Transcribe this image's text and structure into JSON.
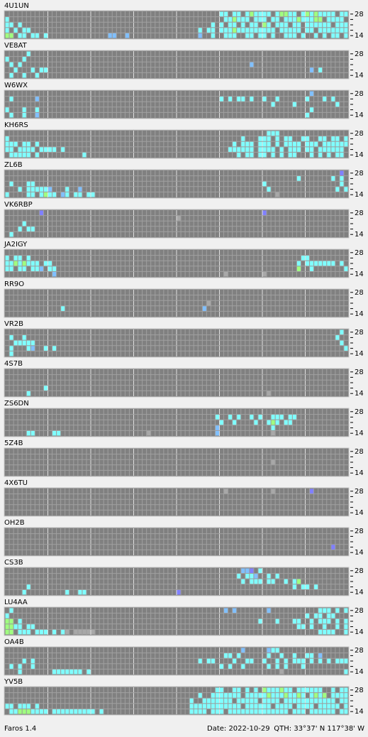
{
  "band_top": "28",
  "band_bottom": "14",
  "beacons": [
    {
      "name": "4U1UN",
      "rows": [
        "..........|..........|..........|..........|..........|cc.cc.cgcc|cc.cggcc.c|gcgcccc.cc",
        "c.........|..........|..........|..........|..........|.ccgccc.cc|c.cc.cccgc|ccgg.cccc.",
        "cc.c......|..........|..........|..........|........c.|c.cc.c.cc.|gc.ccc.cc.|cccccc.ccc",
        "c.c.cc....|..........|..........|..........|.....c.cc.|cccgcccccc|ccc.ccccc.|cc.ccccccc",
        "gg.cc.cc.c|..........|....ll..l.|..........|.....l..c.|.ccc..cc.c|c.c..ccc.c|..c.c.cc.c"
      ]
    },
    {
      "name": "VE8AT",
      "rows": [
        ".....c....|..........|..........|..........|..........|..........|..........|..........",
        "c...c.....|..........|..........|..........|..........|..........|..........|..........",
        ".c.c......|..........|..........|..........|..........|.......l..|..........|..........",
        "..c...c.cc|..........|..........|..........|..........|..........|..........|.l.c......",
        ".c..c..c..|..........|..........|..........|..........|..........|..........|.........."
      ]
    },
    {
      "name": "W6WX",
      "rows": [
        "..........|..........|..........|..........|..........|..........|..........|.l........",
        ".c.....l..|..........|..........|..........|..........|c.c.cc.c..|c..c......|c...c.c...",
        "..........|..........|..........|..........|..........|..........|..c....c..|.......c..",
        "c...c..c..|..........|..........|..........|..........|..........|..........|.c........",
        ".c..c..l..|..........|..........|..........|..........|..........|..........|c........."
      ]
    },
    {
      "name": "KH6RS",
      "rows": [
        "..........|..........|..........|..........|..........|..........|.ccc......|..........",
        "c.........|..........|..........|..........|..........|.....c...c|cc.c.cc..c|c..cc.cc.c",
        "ccc.cc.c..|..........|..........|..........|..........|...c.ccc.c|cc.c.cccc.|ccc.cccccc",
        "cc.cccc.cc|cc.c......|..........|..........|..........|..cccccc.c|ccc.c.ccc.|cc.cccccc.",
        ".ccccc.c..|........c.|..........|..........|..........|....c.cc.c|c.c.c.cc..|.c.c.c.cc."
      ]
    },
    {
      "name": "ZL6B",
      "rows": [
        "..........|..........|..........|..........|..........|..........|..........|........b.",
        "..........|..........|..........|..........|..........|..........|........c.|......c.c.",
        ".c...cc...|..........|..........|..........|..........|..........|c.........|........c.",
        "...c.ccccc|l...c..l..|..........|..........|..........|..........|.c........|.......c.c",
        "c....cc.cg|cc.lc.cc.c|c.........|..........|..........|..........|...d......|.........."
      ]
    },
    {
      "name": "VK6RBP",
      "rows": [
        "........b.|..........|..........|..........|..........|..........|b.........|..........",
        "..........|..........|..........|..........|d.........|..........|..........|..........",
        "....c.....|..........|..........|..........|..........|..........|..........|..........",
        "...c.cc...|..........|..........|..........|..........|..........|..........|..........",
        ".c........|..........|..........|..........|..........|..........|..........|.........."
      ]
    },
    {
      "name": "JA2IGY",
      "rows": [
        "..........|..........|..........|..........|..........|..........|..........|..........",
        "c.cc.c....|..........|..........|..........|..........|..........|.........c|c.........",
        "ccgcgccc.c|c.........|..........|..........|..........|..........|........c.|ccccccc.c.",
        "cc.cc.ccl.|cc........|..........|..........|..........|..........|........g.|.c.......c",
        "..........|.l........|..........|..........|..........|.d........|d.........|.........."
      ]
    },
    {
      "name": "RR9O",
      "rows": [
        "..........|..........|..........|..........|..........|..........|..........|..........",
        "..........|..........|..........|..........|..........|..........|..........|..........",
        "..........|..........|..........|..........|.......d..|..........|..........|..........",
        "..........|...c......|..........|..........|......l...|..........|..........|..........",
        "..........|..........|..........|..........|..........|..........|..........|.........."
      ]
    },
    {
      "name": "VR2B",
      "rows": [
        "..........|..........|..........|..........|..........|..........|..........|........c.",
        ".c..c.....|..........|..........|..........|..........|..........|..........|.......c..",
        "..ccccc...|..........|..........|..........|..........|..........|..........|........c.",
        ".c...cl..c|.c........|..........|..........|..........|..........|..........|.........c",
        ".c........|..........|..........|..........|..........|..........|..........|.........."
      ]
    },
    {
      "name": "4S7B",
      "rows": [
        "..........|..........|..........|..........|..........|..........|..........|..........",
        "..........|..........|..........|..........|..........|..........|..........|..........",
        "..........|..........|..........|..........|..........|..........|..........|..........",
        ".........c|..........|..........|..........|..........|..........|..........|..........",
        ".....c....|..........|..........|..........|..........|..........|.d........|.........."
      ]
    },
    {
      "name": "ZS6DN",
      "rows": [
        "..........|..........|..........|..........|..........|..........|..........|..........",
        "..........|..........|..........|..........|.........c|..c.c..c.c|..ccc.cc..|..........",
        "..........|..........|..........|..........|..........|c..c....c.|.cgc.cc...|..........",
        "..........|..........|..........|..........|.........l|..........|..c.......|..........",
        ".....cc...|.cc.......|..........|...d......|.........l|..........|..d.......|.........."
      ]
    },
    {
      "name": "5Z4B",
      "rows": [
        "..........|..........|..........|..........|..........|..........|..........|..........",
        "..........|..........|..........|..........|..........|..........|..........|..........",
        "..........|..........|..........|..........|..........|..........|..d.......|..........",
        "..........|..........|..........|..........|..........|..........|..........|..........",
        "..........|..........|..........|..........|..........|..........|..........|.........."
      ]
    },
    {
      "name": "4X6TU",
      "rows": [
        "..........|..........|..........|..........|..........|.d........|..d.......|.b........",
        "..........|..........|..........|..........|..........|..........|..........|..........",
        "..........|..........|..........|..........|..........|..........|..........|..........",
        "..........|..........|..........|..........|..........|..........|..........|..........",
        "..........|..........|..........|..........|..........|..........|..........|.........."
      ]
    },
    {
      "name": "OH2B",
      "rows": [
        "..........|..........|..........|..........|..........|..........|..........|..........",
        "..........|..........|..........|..........|..........|..........|..........|..........",
        "..........|..........|..........|..........|..........|..........|..........|..........",
        "..........|..........|..........|..........|..........|..........|..........|......b...",
        "..........|..........|..........|..........|..........|..........|..........|.........."
      ]
    },
    {
      "name": "CS3B",
      "rows": [
        "..........|..........|..........|..........|..........|.....llb.c|..........|..........",
        "..........|..........|..........|..........|..........|....c.ccl.|.c.c......|..........",
        "..........|..........|..........|..........|..........|.....c.ccc|.cc..c.cg.|..........",
        ".....c....|..........|..........|..........|..........|..........|.......c.c|c.c.......",
        "....c.....|....c..cc.|..........|..........|b.........|..........|..........|.........."
      ]
    },
    {
      "name": "LU4AA",
      "rows": [
        ".c........|..........|..........|..........|..........|.l.l......|.l........|...ccc.c.c",
        "c.........|..........|..........|..........|..........|..........|..........|c.cc.cc...",
        "gg.c......|..........|..........|..........|..........|.........c|...c...cc.|.c.ccc.c.c",
        "ggcc.cc...|..........|..........|..........|..........|..........|........cc|.c..c..c.c",
        "gg.ccc.ccc|.c.cd.dddd|d.........|..........|..........|..........|..........|...cccc..c"
      ]
    },
    {
      "name": "OA4B",
      "rows": [
        "..........|..........|..........|..........|..........|.....l....|.lcc......|..........",
        "..........|..........|..........|..........|..........|.cc.c.....|.c..c..c..|cc.l......",
        "....c.c...|..........|..........|..........|.....c.cc.|...c..cc..|c..c.c.ccc|.c.c.c.ccc",
        ".c.c..c...|..........|..........|..........|..........|c.c..c....|.c.c.c...c|..........",
        "...c......|.ccccccc.c|..........|..........|..........|..........|....d.....|.........c"
      ]
    },
    {
      "name": "YV5B",
      "rows": [
        "..........|..........|..........|..........|.........c|c..cc.c.c.|gcccgcc.cc|cccc..c.cc",
        "..........|..........|..........|..........|.....c..cc|ccccc.cccc|cgcccgccgc|.cgcg.cccc",
        "..........|..........|..........|..........|...c..cccc|ccc.ccccc.|cccc.ccccc|ccccccc.cc",
        "cc.ccc.c..|..........|..........|..........|...ccccccc|ccccc.cccc|cc.cccc.cc|cc.ccccc.c",
        ".ccgggcccc|.ccccccccc|c.c.......|..........|...cccc.cc|c.cccccccc|cccccc.ccc|.cccccc.cc"
      ]
    }
  ],
  "status": {
    "app": "Faros 1.4",
    "date": "Date: 2022-10-29",
    "qth": "QTH: 33°37' N  117°38' W"
  }
}
